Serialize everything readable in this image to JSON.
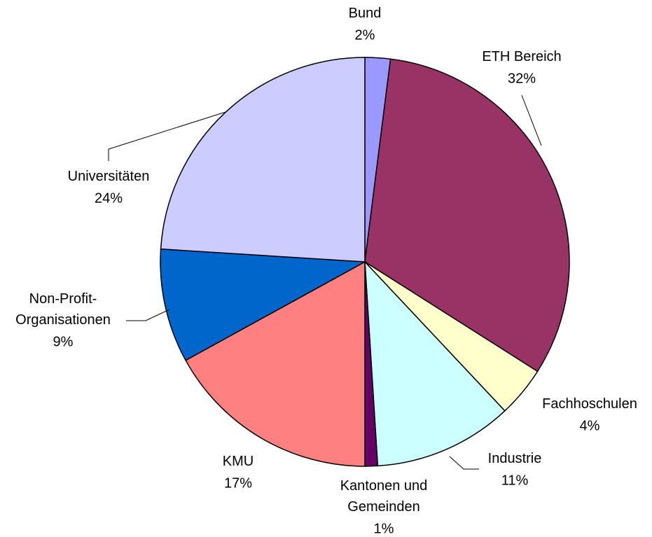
{
  "chart_data": {
    "type": "pie",
    "categories": [
      "Bund",
      "ETH Bereich",
      "Fachhoschulen",
      "Industrie",
      "Kantonen und\nGemeinden",
      "KMU",
      "Non-Profit-\nOrganisationen",
      "Universitäten"
    ],
    "values": [
      2,
      32,
      4,
      11,
      1,
      17,
      9,
      24
    ],
    "value_labels": [
      "2%",
      "32%",
      "4%",
      "11%",
      "1%",
      "17%",
      "9%",
      "24%"
    ],
    "colors": [
      "#9999ff",
      "#993366",
      "#ffffcc",
      "#ccffff",
      "#660066",
      "#ff8080",
      "#0066cc",
      "#ccccff"
    ]
  }
}
